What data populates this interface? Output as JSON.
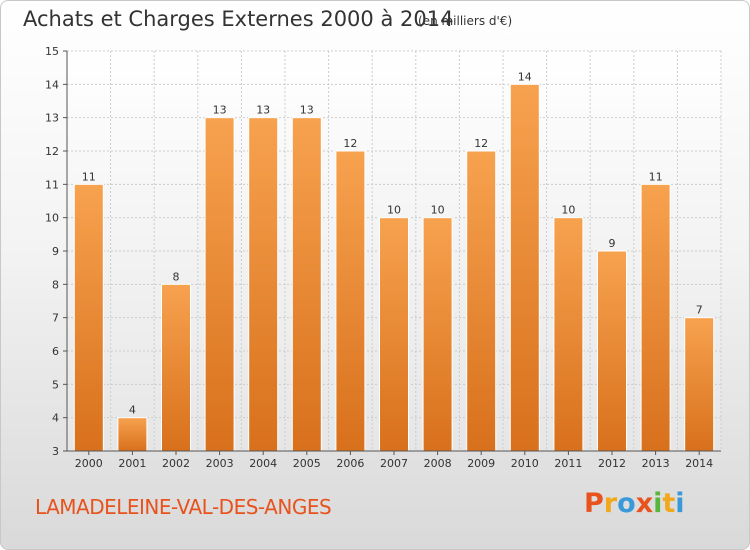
{
  "header": {
    "title": "Achats et Charges Externes 2000 à 2014",
    "subtitle": "(en milliers d'€)"
  },
  "footer": {
    "commune": "LAMADELEINE-VAL-DES-ANGES",
    "brand": "Proxiti",
    "brand_letters": [
      "P",
      "r",
      "o",
      "x",
      "i",
      "t",
      "i"
    ],
    "brand_colors": [
      "#e8521d",
      "#f2a81d",
      "#3a9ad9",
      "#e8521d",
      "#58b63a",
      "#f2a81d",
      "#3a9ad9"
    ]
  },
  "colors": {
    "bar_light": "#f7a24f",
    "bar_dark": "#d8701c",
    "axis": "#555555",
    "grid": "#cccccc"
  },
  "chart_data": {
    "type": "bar",
    "categories": [
      "2000",
      "2001",
      "2002",
      "2003",
      "2004",
      "2005",
      "2006",
      "2007",
      "2008",
      "2009",
      "2010",
      "2011",
      "2012",
      "2013",
      "2014"
    ],
    "values": [
      11,
      4,
      8,
      13,
      13,
      13,
      12,
      10,
      10,
      12,
      14,
      10,
      9,
      11,
      7
    ],
    "ylim": [
      3,
      15
    ],
    "yticks": [
      3,
      4,
      5,
      6,
      7,
      8,
      9,
      10,
      11,
      12,
      13,
      14,
      15
    ],
    "grid": true,
    "data_labels": true
  }
}
